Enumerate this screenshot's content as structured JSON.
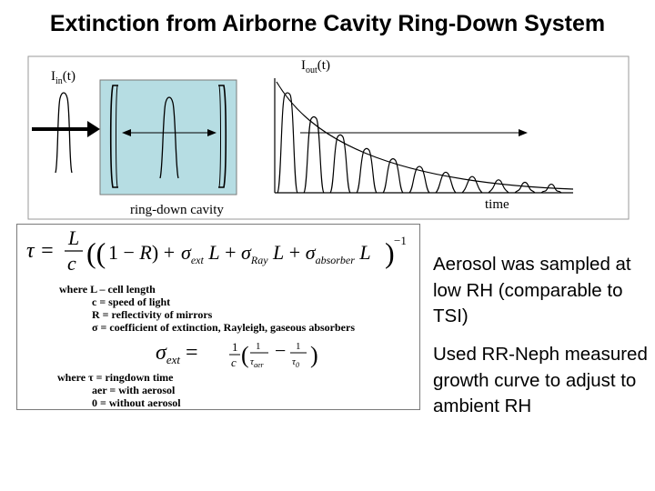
{
  "slide": {
    "title": "Extinction from Airborne Cavity Ring-Down System"
  },
  "diagram": {
    "labels": {
      "input_signal": "I",
      "input_signal_sub": "in",
      "input_signal_suffix": "(t)",
      "output_signal": "I",
      "output_signal_sub": "out",
      "output_signal_suffix": "(t)",
      "cavity": "ring-down cavity",
      "time_axis": "time"
    },
    "colors": {
      "cavity_fill": "#b6dde3",
      "pulse_line": "#000000",
      "arrow": "#000000"
    }
  },
  "equations": {
    "main": "τ = (L/c)((1 − R) + σ_ext L + σ_Ray L + σ_absorber L)^−1",
    "defs_intro": "where  L – cell length",
    "def_c": "c = speed of light",
    "def_r": "R = reflectivity of mirrors",
    "def_sigma": "σ = coefficient of extinction, Rayleigh, gaseous absorbers",
    "ext": "σ_ext = (1/c)(1/τ_aer − 1/τ_0)",
    "where2": "where  τ = ringdown time",
    "aer": "aer = with aerosol",
    "zero": "0 = without aerosol"
  },
  "bullets": [
    "Aerosol was sampled at low RH (comparable to TSI)",
    "Used RR-Neph measured growth curve to adjust to ambient RH"
  ]
}
